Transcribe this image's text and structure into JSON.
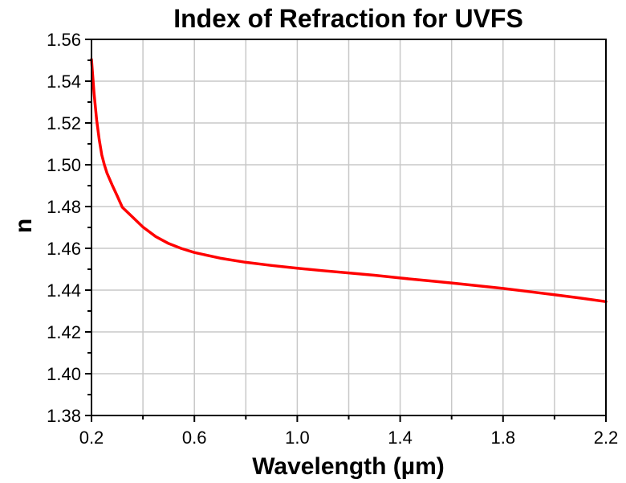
{
  "chart_data": {
    "type": "line",
    "title": "Index of Refraction for UVFS",
    "xlabel": "Wavelength (µm)",
    "ylabel": "n",
    "xlim": [
      0.2,
      2.2
    ],
    "ylim": [
      1.38,
      1.56
    ],
    "xticks": [
      "0.2",
      "0.6",
      "1.0",
      "1.4",
      "1.8",
      "2.2"
    ],
    "yticks": [
      "1.38",
      "1.40",
      "1.42",
      "1.44",
      "1.46",
      "1.48",
      "1.50",
      "1.52",
      "1.54",
      "1.56"
    ],
    "grid": true,
    "series": [
      {
        "color": "#ff0000",
        "x": [
          0.2,
          0.21,
          0.22,
          0.23,
          0.24,
          0.25,
          0.26,
          0.28,
          0.3,
          0.32,
          0.35,
          0.4,
          0.45,
          0.5,
          0.55,
          0.6,
          0.7,
          0.8,
          0.9,
          1.0,
          1.1,
          1.2,
          1.3,
          1.4,
          1.5,
          1.6,
          1.7,
          1.8,
          1.9,
          2.0,
          2.1,
          2.2
        ],
        "y": [
          1.5504,
          1.5342,
          1.5215,
          1.5121,
          1.5047,
          1.5,
          1.4961,
          1.4904,
          1.4851,
          1.4796,
          1.4761,
          1.4702,
          1.4656,
          1.4623,
          1.4599,
          1.458,
          1.4553,
          1.4533,
          1.4518,
          1.4505,
          1.4493,
          1.4482,
          1.4471,
          1.4458,
          1.4446,
          1.4434,
          1.4421,
          1.4408,
          1.4393,
          1.4378,
          1.4362,
          1.4345
        ]
      }
    ]
  }
}
